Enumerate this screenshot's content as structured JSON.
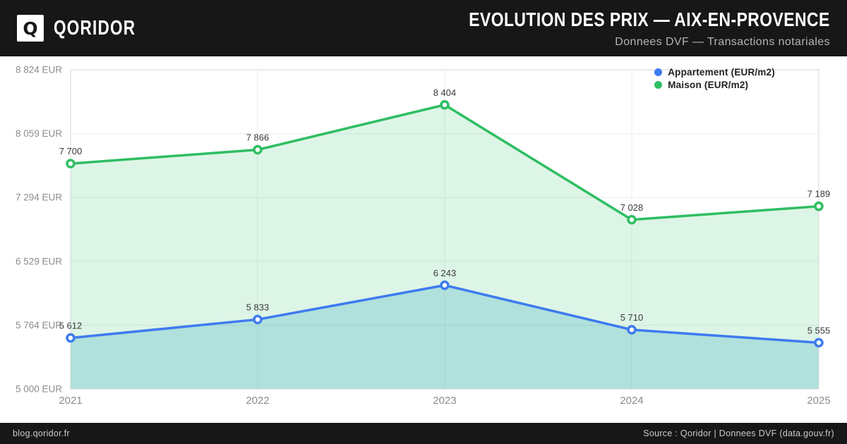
{
  "header": {
    "brand": "QORIDOR",
    "logo_letter": "Q",
    "title": "EVOLUTION DES PRIX — AIX-EN-PROVENCE",
    "subtitle": "Donnees DVF — Transactions notariales"
  },
  "footer": {
    "left": "blog.qoridor.fr",
    "right": "Source : Qoridor | Donnees DVF (data.gouv.fr)"
  },
  "colors": {
    "header_bg": "#171717",
    "chart_bg": "#ffffff",
    "appartement": "#3e7bf0",
    "maison": "#2ebe62",
    "appartement_fill": "rgba(0,145,180,0.20)",
    "maison_fill": "rgba(46,190,98,0.16)",
    "grid": "#ececec",
    "plot_border": "#d6d6d6",
    "axis_text": "#8c8c8c",
    "label_text": "#3a3a3a"
  },
  "chart_data": {
    "type": "line",
    "title": "EVOLUTION DES PRIX — AIX-EN-PROVENCE",
    "subtitle": "Donnees DVF — Transactions notariales",
    "categories": [
      "2021",
      "2022",
      "2023",
      "2024",
      "2025"
    ],
    "series": [
      {
        "name": "Appartement (EUR/m2)",
        "color_key": "appartement",
        "values": [
          5612,
          5833,
          6243,
          5710,
          5555
        ],
        "labels": [
          "5 612",
          "5 833",
          "6 243",
          "5 710",
          "5 555"
        ]
      },
      {
        "name": "Maison (EUR/m2)",
        "color_key": "maison",
        "values": [
          7700,
          7866,
          8404,
          7028,
          7189
        ],
        "labels": [
          "7 700",
          "7 866",
          "8 404",
          "7 028",
          "7 189"
        ]
      }
    ],
    "y_ticks": {
      "values": [
        5000,
        5764,
        6529,
        7294,
        8059,
        8824
      ],
      "labels": [
        "5 000 EUR",
        "5 764 EUR",
        "6 529 EUR",
        "7 294 EUR",
        "8 059 EUR",
        "8 824 EUR"
      ]
    },
    "ylim": [
      5000,
      8824
    ],
    "xlabel": "",
    "ylabel": "",
    "grid": true,
    "area": true,
    "legend_position": "top-right"
  }
}
